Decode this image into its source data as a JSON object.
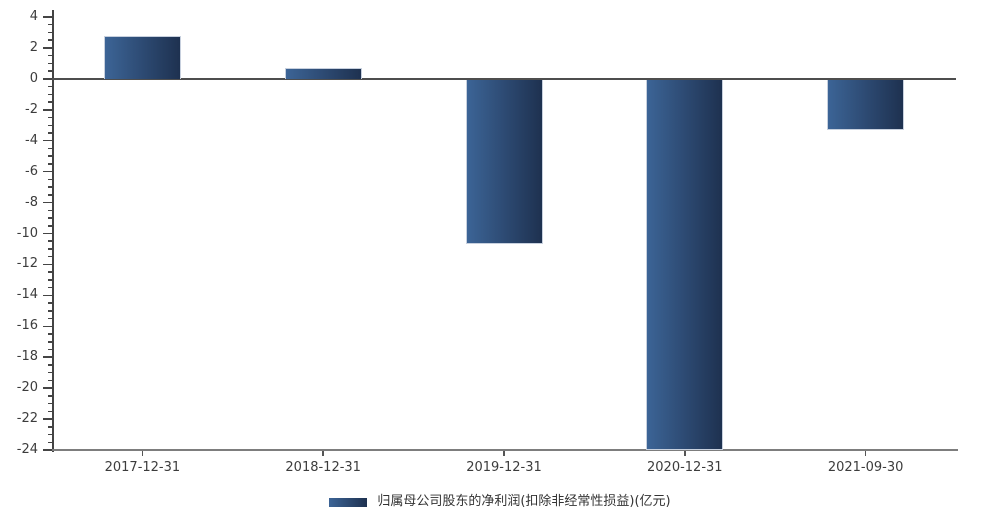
{
  "chart_data": {
    "type": "bar",
    "categories": [
      "2017-12-31",
      "2018-12-31",
      "2019-12-31",
      "2020-12-31",
      "2021-09-30"
    ],
    "values": [
      2.75,
      0.7,
      -10.7,
      -24.0,
      -3.3
    ],
    "series_name": "归属母公司股东的净利润(扣除非经常性损益)(亿元)",
    "title": "",
    "xlabel": "",
    "ylabel": "",
    "ylim": [
      -24,
      4
    ],
    "yticks": [
      4,
      2,
      0,
      -2,
      -4,
      -6,
      -8,
      -10,
      -12,
      -14,
      -16,
      -18,
      -20,
      -22,
      -24
    ],
    "minor_tick_step": 0.5,
    "grid": false,
    "legend_position": "bottom-center",
    "bar_gradient_left": "#3C6496",
    "bar_gradient_right": "#1E3150",
    "bar_border_color": "#C7D0DE"
  },
  "legend": {
    "label": "归属母公司股东的净利润(扣除非经常性损益)(亿元)"
  },
  "colors": {
    "background": "#FFFFFF",
    "axis_line": "#444444",
    "zero_line": "#4D4D4D",
    "bottom_axis": "#7D7D7D",
    "tick_text": "#3C3C3C",
    "legend_text": "#333333"
  }
}
